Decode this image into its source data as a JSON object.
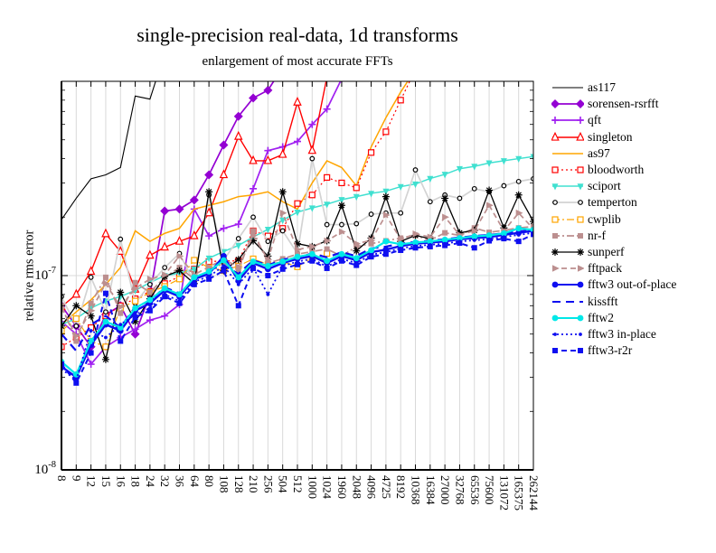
{
  "title": "single-precision real-data, 1d transforms",
  "subtitle": "enlargement of most accurate FFTs",
  "y_axis": {
    "label": "relative rms error",
    "ticks": [
      {
        "base": "10",
        "exp": "-7",
        "value_e8": 10
      },
      {
        "base": "10",
        "exp": "-8",
        "value_e8": 1
      }
    ]
  },
  "chart_data": {
    "type": "line",
    "x_scale": "categorical-log-sizes",
    "y_scale": "log",
    "ylim": [
      "1e-8",
      "1e-6"
    ],
    "ylim_e8": [
      1,
      100
    ],
    "value_scale": "1e-8",
    "grid": {
      "vertical": true,
      "horizontal_at_e8": [
        10
      ]
    },
    "legend_position": "right",
    "categories": [
      "8",
      "9",
      "12",
      "15",
      "16",
      "18",
      "24",
      "32",
      "36",
      "64",
      "80",
      "108",
      "128",
      "210",
      "256",
      "504",
      "512",
      "1000",
      "1024",
      "1960",
      "2048",
      "4096",
      "4725",
      "8192",
      "10368",
      "16384",
      "27000",
      "32768",
      "65536",
      "75600",
      "131072",
      "165375",
      "262144"
    ],
    "series": [
      {
        "name": "as117",
        "color": "#000000",
        "dash": "solid",
        "marker": "none",
        "lw": 1.1,
        "ms": 0,
        "values": [
          19.4,
          25,
          31.5,
          33,
          36,
          84,
          81,
          140,
          null,
          null,
          null,
          null,
          null,
          null,
          null,
          null,
          null,
          null,
          null,
          null,
          null,
          null,
          null,
          null,
          null,
          null,
          null,
          null,
          null,
          null,
          null,
          null,
          null
        ]
      },
      {
        "name": "sorensen-rsrfft",
        "color": "#9400D3",
        "dash": "solid",
        "marker": "diamond",
        "lw": 1.7,
        "ms": 4,
        "values": [
          7,
          5.5,
          4.3,
          6.3,
          7,
          5,
          8,
          21.5,
          22,
          24.5,
          33,
          47,
          66,
          82,
          90,
          118,
          null,
          null,
          null,
          null,
          null,
          null,
          null,
          null,
          null,
          null,
          null,
          null,
          null,
          null,
          null,
          null,
          null
        ]
      },
      {
        "name": "qft",
        "color": "#A020F0",
        "dash": "solid",
        "marker": "plus",
        "lw": 1.7,
        "ms": 4,
        "values": [
          5.8,
          5,
          3.5,
          4.3,
          4.8,
          5.3,
          5.9,
          6.2,
          7.1,
          22,
          16,
          17.5,
          18.4,
          28,
          44,
          46,
          49,
          60,
          72,
          103,
          null,
          null,
          null,
          null,
          null,
          null,
          null,
          null,
          null,
          null,
          null,
          null,
          null
        ]
      },
      {
        "name": "singleton",
        "color": "#FF0000",
        "dash": "solid",
        "marker": "triangle-up-open",
        "lw": 1.4,
        "ms": 3.8,
        "values": [
          6.9,
          8,
          10.5,
          16.4,
          13.3,
          8.5,
          12.7,
          14,
          15,
          16,
          21,
          33,
          52,
          39,
          39,
          42,
          78,
          44,
          105,
          null,
          null,
          null,
          null,
          null,
          null,
          null,
          null,
          null,
          null,
          null,
          null,
          null,
          null
        ]
      },
      {
        "name": "as97",
        "color": "#FFA500",
        "dash": "solid",
        "marker": "none",
        "lw": 1.5,
        "ms": 0,
        "values": [
          5.6,
          6.5,
          7.5,
          9,
          11,
          17,
          15,
          16.5,
          17.5,
          22,
          23,
          24,
          25.5,
          26,
          27,
          24,
          22,
          30,
          39,
          36,
          29,
          46,
          65,
          88,
          115,
          null,
          null,
          null,
          null,
          null,
          null,
          null,
          null
        ]
      },
      {
        "name": "bloodworth",
        "color": "#FF0000",
        "dash": "dot",
        "marker": "square-open",
        "lw": 1.2,
        "ms": 3,
        "values": [
          4.3,
          4.8,
          5.4,
          6.2,
          7,
          7.6,
          8.3,
          9.1,
          9.9,
          10.8,
          11.8,
          11.9,
          11.9,
          17,
          16,
          17.5,
          23.5,
          26,
          32,
          30,
          28.3,
          43,
          55,
          80,
          115,
          null,
          null,
          null,
          null,
          null,
          null,
          null,
          null
        ]
      },
      {
        "name": "sciport",
        "color": "#40E0D0",
        "dash": "solid",
        "marker": "triangle-down",
        "lw": 1.5,
        "ms": 3.5,
        "values": [
          5.6,
          6,
          6.8,
          7.4,
          7.8,
          8.4,
          9.2,
          10,
          10.3,
          10.8,
          12.3,
          13.3,
          14.3,
          15.8,
          17.3,
          19.3,
          21.2,
          22.3,
          23.3,
          24.6,
          25.5,
          26.5,
          27.2,
          28.7,
          29.6,
          31.6,
          33.2,
          35.5,
          36.5,
          38,
          39,
          40,
          41
        ]
      },
      {
        "name": "temperton",
        "color": "#D3D3D3",
        "marker_color": "#000000",
        "dash": "solid",
        "marker": "circle-open",
        "lw": 1.7,
        "ms": 2.3,
        "values": [
          7.8,
          5.5,
          9.8,
          6.5,
          15.4,
          7.2,
          9,
          11,
          13,
          9.2,
          26,
          12,
          15.5,
          20,
          15,
          17,
          13,
          40,
          18.3,
          18.3,
          18.5,
          20.7,
          21,
          21,
          35,
          24,
          26,
          25,
          28,
          27,
          29,
          30.5,
          31.5
        ]
      },
      {
        "name": "cwplib",
        "color": "#FFA500",
        "dash": "dashdot",
        "marker": "square-open",
        "lw": 1.2,
        "ms": 3,
        "values": [
          5.2,
          6,
          4.6,
          4.3,
          6.8,
          7.4,
          8.2,
          8.8,
          9.6,
          12,
          11,
          10.6,
          11.2,
          12.2,
          11.4,
          11.8,
          11.1,
          12.4,
          13,
          null,
          null,
          null,
          null,
          null,
          null,
          null,
          null,
          null,
          null,
          null,
          null,
          null,
          null
        ]
      },
      {
        "name": "nr-f",
        "color": "#BC8F8F",
        "dash": "dashdot",
        "marker": "square",
        "lw": 1.7,
        "ms": 3,
        "values": [
          7,
          4.6,
          7.2,
          9.8,
          6.4,
          9.2,
          8.2,
          9.8,
          11,
          9.6,
          10.6,
          11.6,
          10.6,
          17,
          11.6,
          12.2,
          12.9,
          13.3,
          13.7,
          12.6,
          14.1,
          14.6,
          15.1,
          15.6,
          16.1,
          15.2,
          16.6,
          16.1,
          17.6,
          16.7,
          17.1,
          17.6,
          17.9
        ]
      },
      {
        "name": "sunperf",
        "color": "#000000",
        "dash": "solid",
        "marker": "asterisk",
        "lw": 1.3,
        "ms": 4,
        "values": [
          5.5,
          7,
          6.2,
          3.7,
          8.2,
          5.8,
          7.6,
          9.9,
          10.6,
          9.1,
          27,
          10.6,
          12.1,
          15.1,
          12.6,
          27,
          14.6,
          14.1,
          15.1,
          23,
          13.4,
          15.6,
          25.5,
          15,
          16.1,
          15.5,
          25,
          16.6,
          17.1,
          27.5,
          17.6,
          26,
          19
        ]
      },
      {
        "name": "fftpack",
        "color": "#BC8F8F",
        "dash": "dash",
        "marker": "triangle-right",
        "lw": 1.7,
        "ms": 3.8,
        "values": [
          6.8,
          4.9,
          6.6,
          9.1,
          6.9,
          8.6,
          9.6,
          10.1,
          12.6,
          10.1,
          11.1,
          12.1,
          11.1,
          16.1,
          12.1,
          21,
          13.6,
          14.1,
          15.1,
          16.8,
          14.6,
          15.2,
          20.5,
          15.4,
          16.4,
          15.8,
          20,
          16.2,
          17,
          23,
          17,
          21,
          17.4
        ]
      },
      {
        "name": "fftw3 out-of-place",
        "color": "#0E0EF0",
        "dash": "solid",
        "marker": "circle",
        "lw": 2.4,
        "ms": 3.4,
        "values": [
          3.4,
          3,
          4.4,
          5.6,
          5.2,
          6.6,
          7.2,
          8.4,
          7.8,
          9.6,
          10.2,
          12.6,
          9.4,
          11.6,
          10.8,
          11.6,
          12.2,
          12.6,
          11.6,
          12.6,
          12,
          13.2,
          13.6,
          14.2,
          14.6,
          14.8,
          15,
          15.4,
          15.6,
          15.8,
          16.2,
          16.6,
          17
        ]
      },
      {
        "name": "kissfft",
        "color": "#0E0EF0",
        "dash": "longdash",
        "marker": "none",
        "lw": 2.2,
        "ms": 0,
        "values": [
          5,
          4.1,
          5.6,
          6.2,
          5.4,
          6.9,
          7.4,
          8.7,
          8.1,
          9.4,
          10.7,
          11.3,
          10.2,
          12,
          11.3,
          12.1,
          12.4,
          13,
          12.4,
          13.2,
          12.6,
          13.8,
          14.1,
          14.6,
          14.9,
          15.1,
          15.4,
          15.7,
          16,
          16.2,
          16.5,
          16.9,
          17.1
        ]
      },
      {
        "name": "fftw2",
        "color": "#00E8E8",
        "dash": "solid",
        "marker": "circle",
        "lw": 2.2,
        "ms": 3.4,
        "values": [
          3.6,
          3.1,
          4.6,
          5.8,
          5.4,
          6.8,
          7.5,
          8.6,
          8,
          9.8,
          10.5,
          12,
          9.8,
          11.8,
          11.2,
          11.8,
          12.5,
          12.9,
          11.9,
          12.9,
          12.3,
          13.5,
          15,
          14.5,
          14.8,
          15,
          15.3,
          15.6,
          15.9,
          16.1,
          16.5,
          17.5,
          17.2
        ]
      },
      {
        "name": "fftw3 in-place",
        "color": "#0E0EF0",
        "dash": "dot",
        "marker": "circle-small",
        "lw": 1.8,
        "ms": 1.9,
        "values": [
          3.3,
          2.9,
          5.2,
          4.8,
          5.6,
          6.3,
          6.8,
          8,
          7.4,
          9.3,
          9.9,
          11.2,
          9,
          11,
          8,
          11.2,
          11.8,
          12.2,
          11.1,
          12.2,
          11.6,
          12.8,
          13.2,
          13.8,
          14.2,
          14.4,
          14.6,
          15,
          15.2,
          15.4,
          15.8,
          16.2,
          16.6
        ]
      },
      {
        "name": "fftw3-r2r",
        "color": "#0E0EF0",
        "dash": "dash",
        "marker": "square",
        "lw": 2.0,
        "ms": 3,
        "values": [
          3.5,
          2.8,
          4,
          8.1,
          4.6,
          6.1,
          6.6,
          7.8,
          7.2,
          9,
          9.6,
          10.6,
          7,
          10.9,
          10,
          10.8,
          11.4,
          11.9,
          10.9,
          11.9,
          11.3,
          12.5,
          12.9,
          13.5,
          13.9,
          14.1,
          14.3,
          14.7,
          13.9,
          15.1,
          15.5,
          15,
          16.3
        ]
      }
    ]
  }
}
